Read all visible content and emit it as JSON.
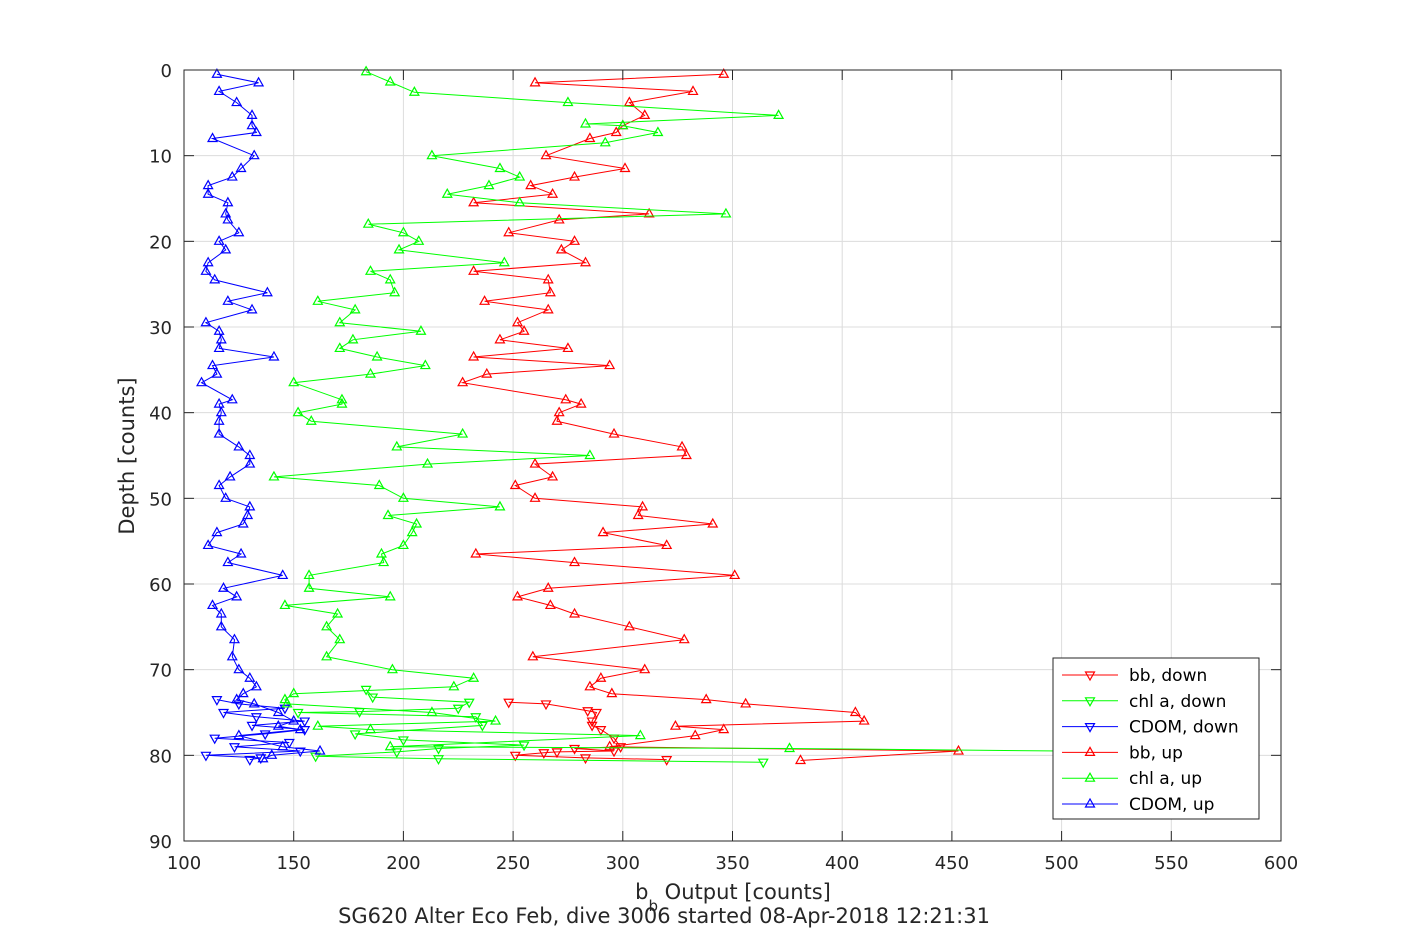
{
  "chart_data": {
    "type": "line",
    "ylabel": "Depth [counts]",
    "xlabel": {
      "base": "b",
      "sub": "b",
      "rest": " Output [counts]"
    },
    "caption": "SG620 Alter Eco Feb, dive 3006 started 08-Apr-2018 12:21:31",
    "xlim": [
      100,
      600
    ],
    "ylim": [
      0,
      90
    ],
    "y_reversed": true,
    "grid": true,
    "legend_position": "bottom-right",
    "x_ticks": [
      "100",
      "150",
      "200",
      "250",
      "300",
      "350",
      "400",
      "450",
      "500",
      "550",
      "600"
    ],
    "y_ticks": [
      "0",
      "10",
      "20",
      "30",
      "40",
      "50",
      "60",
      "70",
      "80",
      "90"
    ],
    "series": [
      {
        "name": "bb, down",
        "color": "#ff0000",
        "marker": "triangle-down",
        "points": [
          [
            248,
            73.8
          ],
          [
            265,
            74.0
          ],
          [
            284,
            74.8
          ],
          [
            288,
            75.0
          ],
          [
            286,
            76.0
          ],
          [
            286,
            76.5
          ],
          [
            290,
            77.0
          ],
          [
            296,
            78.0
          ],
          [
            299,
            79.0
          ],
          [
            278,
            79.2
          ],
          [
            296,
            79.5
          ],
          [
            270,
            79.6
          ],
          [
            264,
            79.7
          ],
          [
            251,
            80.0
          ],
          [
            283,
            80.3
          ],
          [
            320,
            80.5
          ]
        ]
      },
      {
        "name": "chl a, down",
        "color": "#00ff00",
        "marker": "triangle-down",
        "points": [
          [
            183,
            72.3
          ],
          [
            186,
            73.2
          ],
          [
            230,
            73.8
          ],
          [
            225,
            74.5
          ],
          [
            180,
            74.9
          ],
          [
            152,
            75.0
          ],
          [
            233,
            75.5
          ],
          [
            236,
            76.5
          ],
          [
            178,
            77.5
          ],
          [
            200,
            78.2
          ],
          [
            255,
            78.8
          ],
          [
            216,
            79.2
          ],
          [
            197,
            79.6
          ],
          [
            160,
            80.1
          ],
          [
            216,
            80.4
          ],
          [
            364,
            80.8
          ]
        ]
      },
      {
        "name": "CDOM, down",
        "color": "#0000ff",
        "marker": "triangle-down",
        "points": [
          [
            115,
            73.5
          ],
          [
            125,
            74.0
          ],
          [
            146,
            74.5
          ],
          [
            118,
            75.0
          ],
          [
            133,
            75.5
          ],
          [
            155,
            76.0
          ],
          [
            131,
            76.5
          ],
          [
            155,
            77.0
          ],
          [
            137,
            77.5
          ],
          [
            114,
            78.0
          ],
          [
            148,
            78.5
          ],
          [
            123,
            79.0
          ],
          [
            153,
            79.5
          ],
          [
            110,
            80.0
          ],
          [
            135,
            80.3
          ],
          [
            130,
            80.5
          ]
        ]
      },
      {
        "name": "bb, up",
        "color": "#ff0000",
        "marker": "triangle-up",
        "points": [
          [
            346,
            0.5
          ],
          [
            260,
            1.5
          ],
          [
            332,
            2.5
          ],
          [
            303,
            3.8
          ],
          [
            310,
            5.3
          ],
          [
            300,
            6.5
          ],
          [
            297,
            7.3
          ],
          [
            285,
            8.0
          ],
          [
            265,
            10.0
          ],
          [
            301,
            11.5
          ],
          [
            278,
            12.5
          ],
          [
            258,
            13.5
          ],
          [
            268,
            14.5
          ],
          [
            232,
            15.5
          ],
          [
            312,
            16.8
          ],
          [
            271,
            17.5
          ],
          [
            248,
            19.0
          ],
          [
            278,
            20.0
          ],
          [
            272,
            21.0
          ],
          [
            283,
            22.5
          ],
          [
            232,
            23.5
          ],
          [
            266,
            24.5
          ],
          [
            267,
            26.0
          ],
          [
            237,
            27.0
          ],
          [
            266,
            28.0
          ],
          [
            252,
            29.5
          ],
          [
            255,
            30.5
          ],
          [
            244,
            31.5
          ],
          [
            275,
            32.5
          ],
          [
            232,
            33.5
          ],
          [
            294,
            34.5
          ],
          [
            238,
            35.5
          ],
          [
            227,
            36.5
          ],
          [
            274,
            38.5
          ],
          [
            281,
            39.0
          ],
          [
            271,
            40.0
          ],
          [
            270,
            41.0
          ],
          [
            296,
            42.5
          ],
          [
            327,
            44.0
          ],
          [
            329,
            45.0
          ],
          [
            260,
            46.0
          ],
          [
            268,
            47.5
          ],
          [
            251,
            48.5
          ],
          [
            260,
            50.0
          ],
          [
            309,
            51.0
          ],
          [
            307,
            52.0
          ],
          [
            341,
            53.0
          ],
          [
            291,
            54.0
          ],
          [
            320,
            55.5
          ],
          [
            233,
            56.5
          ],
          [
            278,
            57.5
          ],
          [
            351,
            59.0
          ],
          [
            266,
            60.5
          ],
          [
            252,
            61.5
          ],
          [
            267,
            62.5
          ],
          [
            278,
            63.5
          ],
          [
            303,
            65.0
          ],
          [
            328,
            66.5
          ],
          [
            259,
            68.5
          ],
          [
            310,
            70.0
          ],
          [
            290,
            71.0
          ],
          [
            285,
            72.0
          ],
          [
            295,
            72.8
          ],
          [
            338,
            73.5
          ],
          [
            356,
            74.0
          ],
          [
            406,
            75.0
          ],
          [
            410,
            76.0
          ],
          [
            324,
            76.6
          ],
          [
            346,
            77.0
          ],
          [
            333,
            77.7
          ],
          [
            294,
            79.0
          ],
          [
            453,
            79.5
          ],
          [
            381,
            80.6
          ]
        ]
      },
      {
        "name": "chl a, up",
        "color": "#00ff00",
        "marker": "triangle-up",
        "points": [
          [
            183,
            0.2
          ],
          [
            194,
            1.4
          ],
          [
            205,
            2.6
          ],
          [
            275,
            3.8
          ],
          [
            371,
            5.3
          ],
          [
            283,
            6.3
          ],
          [
            300,
            6.5
          ],
          [
            316,
            7.3
          ],
          [
            292,
            8.5
          ],
          [
            213,
            10.0
          ],
          [
            244,
            11.5
          ],
          [
            253,
            12.5
          ],
          [
            239,
            13.5
          ],
          [
            220,
            14.5
          ],
          [
            253,
            15.5
          ],
          [
            347,
            16.8
          ],
          [
            184,
            18.0
          ],
          [
            200,
            19.0
          ],
          [
            207,
            20.0
          ],
          [
            198,
            21.0
          ],
          [
            246,
            22.5
          ],
          [
            185,
            23.5
          ],
          [
            194,
            24.5
          ],
          [
            196,
            26.0
          ],
          [
            161,
            27.0
          ],
          [
            178,
            28.0
          ],
          [
            171,
            29.5
          ],
          [
            208,
            30.5
          ],
          [
            177,
            31.5
          ],
          [
            171,
            32.5
          ],
          [
            188,
            33.5
          ],
          [
            210,
            34.5
          ],
          [
            185,
            35.5
          ],
          [
            150,
            36.5
          ],
          [
            172,
            38.5
          ],
          [
            172,
            39.0
          ],
          [
            152,
            40.0
          ],
          [
            158,
            41.0
          ],
          [
            227,
            42.5
          ],
          [
            197,
            44.0
          ],
          [
            285,
            45.0
          ],
          [
            211,
            46.0
          ],
          [
            141,
            47.5
          ],
          [
            189,
            48.5
          ],
          [
            200,
            50.0
          ],
          [
            244,
            51.0
          ],
          [
            193,
            52.0
          ],
          [
            206,
            53.0
          ],
          [
            204,
            54.0
          ],
          [
            200,
            55.5
          ],
          [
            190,
            56.5
          ],
          [
            191,
            57.5
          ],
          [
            157,
            59.0
          ],
          [
            157,
            60.5
          ],
          [
            194,
            61.5
          ],
          [
            146,
            62.5
          ],
          [
            170,
            63.5
          ],
          [
            165,
            65.0
          ],
          [
            171,
            66.5
          ],
          [
            165,
            68.5
          ],
          [
            195,
            70.0
          ],
          [
            232,
            71.0
          ],
          [
            223,
            72.0
          ],
          [
            150,
            72.8
          ],
          [
            146,
            73.5
          ],
          [
            147,
            74.0
          ],
          [
            213,
            75.0
          ],
          [
            242,
            76.0
          ],
          [
            161,
            76.6
          ],
          [
            185,
            77.0
          ],
          [
            308,
            77.7
          ],
          [
            194,
            79.0
          ],
          [
            376,
            79.2
          ],
          [
            500,
            79.5
          ]
        ]
      },
      {
        "name": "CDOM, up",
        "color": "#0000ff",
        "marker": "triangle-up",
        "points": [
          [
            115,
            0.5
          ],
          [
            134,
            1.5
          ],
          [
            116,
            2.5
          ],
          [
            124,
            3.8
          ],
          [
            131,
            5.3
          ],
          [
            131,
            6.5
          ],
          [
            133,
            7.3
          ],
          [
            113,
            8.0
          ],
          [
            132,
            10.0
          ],
          [
            126,
            11.5
          ],
          [
            122,
            12.5
          ],
          [
            111,
            13.5
          ],
          [
            111,
            14.5
          ],
          [
            120,
            15.5
          ],
          [
            119,
            16.8
          ],
          [
            120,
            17.5
          ],
          [
            125,
            19.0
          ],
          [
            116,
            20.0
          ],
          [
            119,
            21.0
          ],
          [
            111,
            22.5
          ],
          [
            110,
            23.5
          ],
          [
            114,
            24.5
          ],
          [
            138,
            26.0
          ],
          [
            120,
            27.0
          ],
          [
            131,
            28.0
          ],
          [
            110,
            29.5
          ],
          [
            116,
            30.5
          ],
          [
            117,
            31.5
          ],
          [
            116,
            32.5
          ],
          [
            141,
            33.5
          ],
          [
            113,
            34.5
          ],
          [
            115,
            35.5
          ],
          [
            108,
            36.5
          ],
          [
            122,
            38.5
          ],
          [
            116,
            39.0
          ],
          [
            117,
            40.0
          ],
          [
            116,
            41.0
          ],
          [
            116,
            42.5
          ],
          [
            125,
            44.0
          ],
          [
            130,
            45.0
          ],
          [
            130,
            46.0
          ],
          [
            121,
            47.5
          ],
          [
            116,
            48.5
          ],
          [
            119,
            50.0
          ],
          [
            130,
            51.0
          ],
          [
            129,
            52.0
          ],
          [
            127,
            53.0
          ],
          [
            115,
            54.0
          ],
          [
            111,
            55.5
          ],
          [
            126,
            56.5
          ],
          [
            120,
            57.5
          ],
          [
            145,
            59.0
          ],
          [
            118,
            60.5
          ],
          [
            124,
            61.5
          ],
          [
            113,
            62.5
          ],
          [
            117,
            63.5
          ],
          [
            117,
            65.0
          ],
          [
            123,
            66.5
          ],
          [
            122,
            68.5
          ],
          [
            125,
            70.0
          ],
          [
            130,
            71.0
          ],
          [
            133,
            72.0
          ],
          [
            127,
            72.8
          ],
          [
            124,
            73.5
          ],
          [
            132,
            74.0
          ],
          [
            143,
            75.0
          ],
          [
            150,
            76.0
          ],
          [
            143,
            76.6
          ],
          [
            153,
            77.0
          ],
          [
            125,
            77.7
          ],
          [
            145,
            79.0
          ],
          [
            162,
            79.5
          ],
          [
            140,
            80.0
          ],
          [
            136,
            80.4
          ]
        ]
      }
    ]
  }
}
